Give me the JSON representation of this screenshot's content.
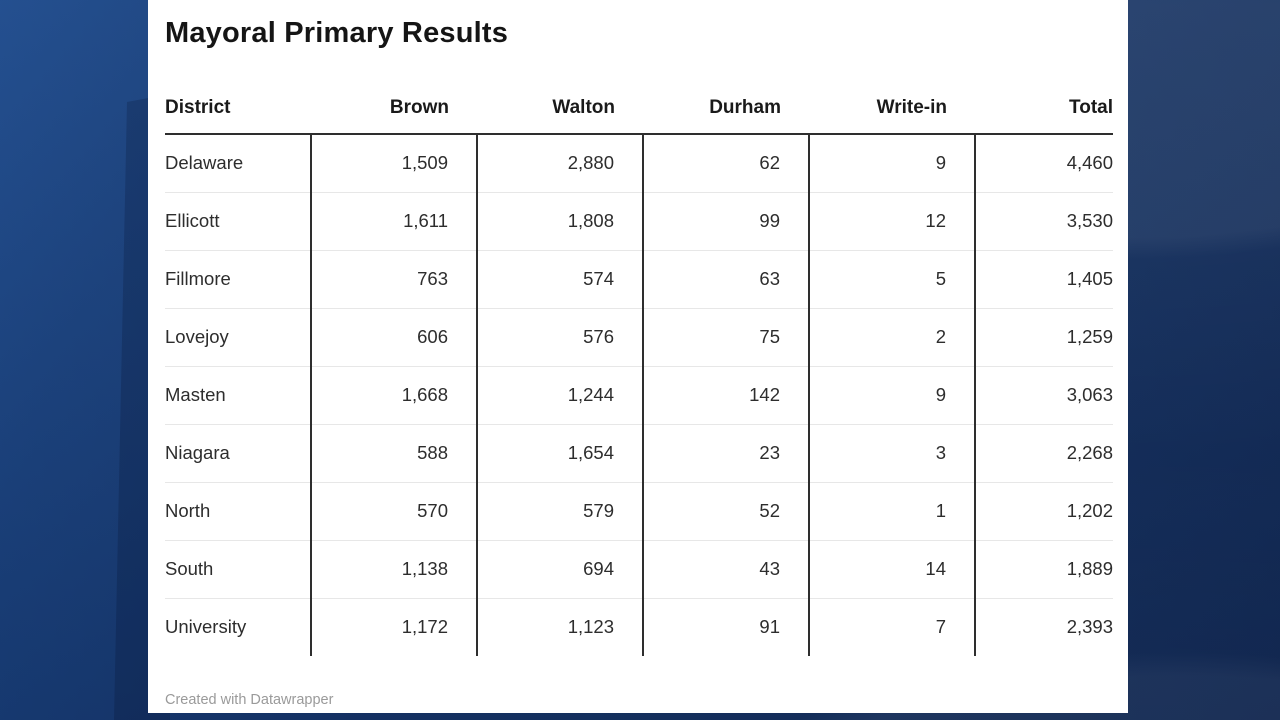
{
  "page": {
    "title": "Mayoral Primary Results",
    "footer": "Created with Datawrapper"
  },
  "table": {
    "columns": [
      "District",
      "Brown",
      "Walton",
      "Durham",
      "Write-in",
      "Total"
    ],
    "rows": [
      [
        "Delaware",
        "1,509",
        "2,880",
        "62",
        "9",
        "4,460"
      ],
      [
        "Ellicott",
        "1,611",
        "1,808",
        "99",
        "12",
        "3,530"
      ],
      [
        "Fillmore",
        "763",
        "574",
        "63",
        "5",
        "1,405"
      ],
      [
        "Lovejoy",
        "606",
        "576",
        "75",
        "2",
        "1,259"
      ],
      [
        "Masten",
        "1,668",
        "1,244",
        "142",
        "9",
        "3,063"
      ],
      [
        "Niagara",
        "588",
        "1,654",
        "23",
        "3",
        "2,268"
      ],
      [
        "North",
        "570",
        "579",
        "52",
        "1",
        "1,202"
      ],
      [
        "South",
        "1,138",
        "694",
        "43",
        "14",
        "1,889"
      ],
      [
        "University",
        "1,172",
        "1,123",
        "91",
        "7",
        "2,393"
      ]
    ]
  },
  "chart_data": {
    "type": "table",
    "title": "Mayoral Primary Results",
    "columns": [
      "District",
      "Brown",
      "Walton",
      "Durham",
      "Write-in",
      "Total"
    ],
    "categories": [
      "Delaware",
      "Ellicott",
      "Fillmore",
      "Lovejoy",
      "Masten",
      "Niagara",
      "North",
      "South",
      "University"
    ],
    "series": [
      {
        "name": "Brown",
        "values": [
          1509,
          1611,
          763,
          606,
          1668,
          588,
          570,
          1138,
          1172
        ]
      },
      {
        "name": "Walton",
        "values": [
          2880,
          1808,
          574,
          576,
          1244,
          1654,
          579,
          694,
          1123
        ]
      },
      {
        "name": "Durham",
        "values": [
          62,
          99,
          63,
          75,
          142,
          23,
          52,
          43,
          91
        ]
      },
      {
        "name": "Write-in",
        "values": [
          9,
          12,
          5,
          2,
          9,
          3,
          1,
          14,
          7
        ]
      },
      {
        "name": "Total",
        "values": [
          4460,
          3530,
          1405,
          1259,
          3063,
          2268,
          1202,
          1889,
          2393
        ]
      }
    ],
    "attribution": "Created with Datawrapper",
    "layout": {
      "grid": "dark vertical dividers between value columns, light horizontal row rules",
      "alignment": "numbers right-aligned, district left-aligned"
    }
  },
  "colors": {
    "card_background": "#ffffff",
    "title_text": "#151515",
    "body_text": "#2d2d2d",
    "divider_dark": "#2e2e2e",
    "row_rule_light": "#e7e7e7",
    "footer_text": "#9a9a9a",
    "background_blue_light": "#1d4a8c",
    "background_blue_dark": "#112a57"
  }
}
